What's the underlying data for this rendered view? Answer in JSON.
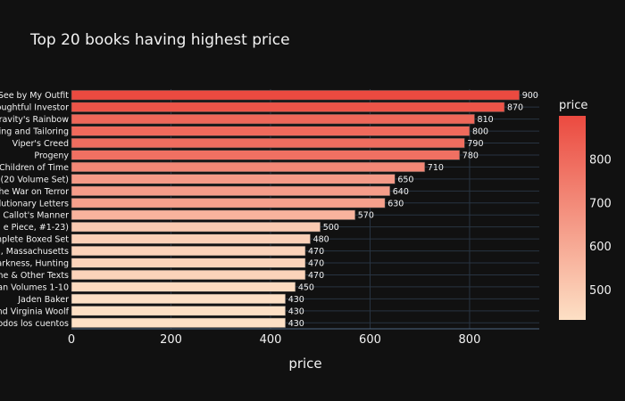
{
  "chart_data": {
    "type": "bar",
    "orientation": "horizontal",
    "title": "Top 20 books having highest price",
    "xlabel": "price",
    "ylabel": "",
    "xlim": [
      0,
      940
    ],
    "xticks": [
      0,
      200,
      400,
      600,
      800
    ],
    "xtick_labels": [
      "0",
      "200",
      "400",
      "600",
      "800"
    ],
    "grid": true,
    "categories": [
      "See by My Outfit",
      "oughtful Investor",
      "Gravity's Rainbow",
      "ting and Tailoring",
      "Viper's Creed",
      "Progeny",
      "Children of Time",
      "(20 Volume Set)",
      "he War on Terror",
      "olutionary Letters",
      "n Callot's Manner",
      "e Piece, #1-23)",
      "mplete Boxed Set",
      "d, Massachusetts",
      "arkness, Hunting",
      "ine & Other Texts",
      "an Volumes 1-10",
      "Jaden Baker",
      "nd Virginia Woolf",
      "Todos los cuentos"
    ],
    "values": [
      900,
      870,
      810,
      800,
      790,
      780,
      710,
      650,
      640,
      630,
      570,
      500,
      480,
      470,
      470,
      470,
      450,
      430,
      430,
      430
    ],
    "value_labels": [
      "900",
      "870",
      "810",
      "800",
      "790",
      "780",
      "710",
      "650",
      "640",
      "630",
      "570",
      "500",
      "480",
      "470",
      "470",
      "470",
      "450",
      "430",
      "430",
      "430"
    ],
    "colorbar": {
      "title": "price",
      "range": [
        430,
        900
      ],
      "ticks": [
        500,
        600,
        700,
        800
      ],
      "tick_labels": [
        "500",
        "600",
        "700",
        "800"
      ],
      "color_low": "#fde0c5",
      "color_high": "#eb4a40"
    },
    "colors": {
      "background": "#111111",
      "grid": "#283442",
      "text": "#f2f2f2"
    }
  }
}
